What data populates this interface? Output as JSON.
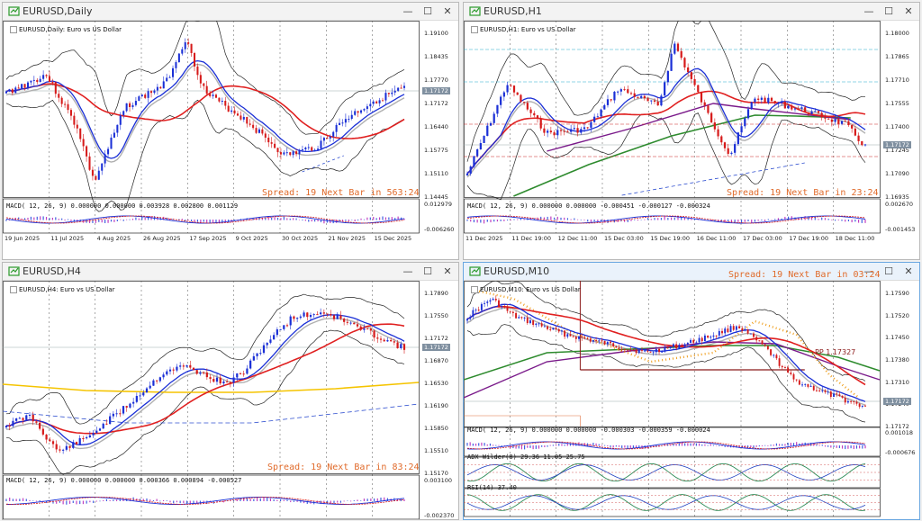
{
  "colors": {
    "bull": "#1a2fd6",
    "bear": "#d61a1a",
    "ma_red": "#e02020",
    "ma_yellow": "#f5c400",
    "ma_green": "#2e8b2e",
    "ma_purple": "#7a1a8a",
    "bands": "#222222",
    "grey_ma": "#b0b0b0",
    "spread_text": "#e06a2a",
    "pp_line": "#8b1a1a"
  },
  "windows": [
    {
      "title": "EURUSD,Daily",
      "symbol_label": "EURUSD,Daily: Euro vs US Dollar",
      "spread_text": "Spread: 19  Next Bar in 563:24",
      "macd_label": "MACD( 12, 26, 9) 0.000000 0.000000 0.003928 0.002800 0.001129",
      "y_ticks": [
        "1.19100",
        "1.18435",
        "1.17770",
        "1.17172",
        "1.16440",
        "1.15775",
        "1.15110",
        "1.14445"
      ],
      "current_price": "1.17172",
      "macd_ticks": [
        "0.012979",
        "-0.006260"
      ],
      "x_ticks": [
        "19 Jun 2025",
        "11 Jul 2025",
        "4 Aug 2025",
        "26 Aug 2025",
        "17 Sep 2025",
        "9 Oct 2025",
        "30 Oct 2025",
        "21 Nov 2025",
        "15 Dec 2025"
      ]
    },
    {
      "title": "EURUSD,H1",
      "symbol_label": "EURUSD,H1: Euro vs US Dollar",
      "spread_text": "Spread: 19  Next Bar in 23:24",
      "macd_label": "MACD( 12, 26, 9) 0.000000 0.000000 -0.000451 -0.000127 -0.000324",
      "y_ticks": [
        "1.18000",
        "1.17865",
        "1.17710",
        "1.17555",
        "1.17400",
        "1.17245",
        "1.17090",
        "1.16935"
      ],
      "current_price": "1.17172",
      "extra_tags": [
        "1.17500",
        "1.17068"
      ],
      "macd_ticks": [
        "0.002670",
        "-0.001453"
      ],
      "x_ticks": [
        "11 Dec 2025",
        "11 Dec 19:00",
        "12 Dec 11:00",
        "15 Dec 03:00",
        "15 Dec 19:00",
        "16 Dec 11:00",
        "17 Dec 03:00",
        "17 Dec 19:00",
        "18 Dec 11:00"
      ]
    },
    {
      "title": "EURUSD,H4",
      "symbol_label": "EURUSD,H4: Euro vs US Dollar",
      "spread_text": "Spread: 19  Next Bar in 83:24",
      "macd_label": "MACD( 12, 26, 9) 0.000000 0.000000 0.000366 0.000894 -0.000527",
      "y_ticks": [
        "1.17890",
        "1.17550",
        "1.17172",
        "1.16870",
        "1.16530",
        "1.16190",
        "1.15850",
        "1.15510",
        "1.15170"
      ],
      "current_price": "1.17172",
      "macd_ticks": [
        "0.003100",
        "-0.002370"
      ],
      "x_ticks": [
        "18 Nov 2025",
        "21 Nov 08:00",
        "26 Nov 08:00",
        "28 Nov 16:00",
        "3 Dec 08:00",
        "8 Dec 00:00",
        "10 Dec 16:00",
        "15 Dec 08:00",
        "18 Dec 00:00"
      ]
    },
    {
      "title": "EURUSD,M10",
      "symbol_label": "EURUSD,M10: Euro vs US Dollar",
      "spread_text": "Spread: 19  Next Bar in 03:24",
      "pp_text": "PP 1.17327",
      "macd_label": "MACD( 12, 26, 9) 0.000000 0.000000 -0.000303 -0.000359 -0.000024",
      "adx_label": "ADX Wilder(8) 29.36 11.05 25.75",
      "rsi_label": "RSI(14) 37.40",
      "y_ticks": [
        "1.17590",
        "1.17520",
        "1.17450",
        "1.17380",
        "1.17310",
        "1.17240",
        "1.17172"
      ],
      "current_price": "1.17172",
      "extra_tags": [
        "1.17500"
      ],
      "macd_ticks": [
        "0.001018",
        "-0.000676"
      ],
      "adx_ticks": [
        "53.85",
        "25.00",
        "0.00"
      ],
      "rsi_ticks": [
        "100.00",
        "70.00",
        "50.00",
        "30.00",
        "0.00"
      ],
      "x_ticks": [
        "17 Dec 2025",
        "17 Dec 19:20",
        "17 Dec 22:00",
        "18 Dec 00:40",
        "18 Dec 03:20",
        "18 Dec 06:00",
        "18 Dec 08:40",
        "18 Dec 11:20",
        "18 Dec 14:00"
      ]
    }
  ]
}
